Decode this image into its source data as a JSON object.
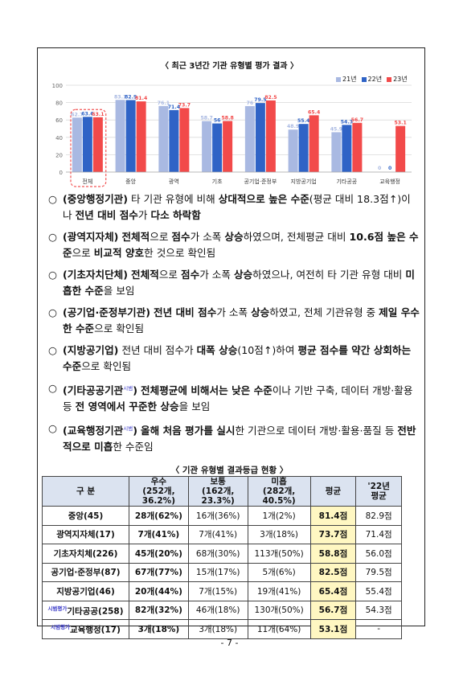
{
  "chart_data": {
    "type": "bar",
    "title": "〈 최근 3년간 기관 유형별 평가 결과 〉",
    "categories": [
      "전체",
      "중앙",
      "광역",
      "기초",
      "공기업·준정부",
      "지방공기업",
      "기타공공",
      "교육행정"
    ],
    "series": [
      {
        "name": "21년",
        "color": "#a9b9e2",
        "values": [
          62.7,
          83.1,
          76.1,
          58.7,
          76.0,
          48.9,
          45.9,
          0
        ]
      },
      {
        "name": "22년",
        "color": "#2f63c6",
        "values": [
          63.6,
          82.9,
          71.4,
          56.0,
          79.5,
          55.4,
          54.3,
          0
        ]
      },
      {
        "name": "23년",
        "color": "#f24a4a",
        "values": [
          63.1,
          81.4,
          73.7,
          58.8,
          82.5,
          65.4,
          56.7,
          53.1
        ]
      }
    ],
    "yticks": [
      0,
      20,
      40,
      60,
      80,
      100
    ],
    "ylim": [
      0,
      100
    ],
    "grid": true,
    "legend": "top-right"
  },
  "bullets": [
    {
      "mark": "○",
      "parts": [
        {
          "t": "(중앙행정기관)",
          "b": true
        },
        {
          "t": " 타 기관 유형에 비해 "
        },
        {
          "t": "상대적으로 높은 수준",
          "b": true
        },
        {
          "t": "(평균 대비 18.3점↑)이나 "
        },
        {
          "t": "전년 대비 점수",
          "b": true
        },
        {
          "t": "가 "
        },
        {
          "t": "다소 하락함",
          "b": true
        }
      ]
    },
    {
      "mark": "○",
      "parts": [
        {
          "t": "(광역지자체)",
          "b": true
        },
        {
          "t": " "
        },
        {
          "t": "전체적",
          "b": true
        },
        {
          "t": "으로 "
        },
        {
          "t": "점수",
          "b": true
        },
        {
          "t": "가 소폭 "
        },
        {
          "t": "상승",
          "b": true
        },
        {
          "t": "하였으며, 전체평균 대비 "
        },
        {
          "t": "10.6점 높은 수준",
          "b": true
        },
        {
          "t": "으로 "
        },
        {
          "t": "비교적 양호",
          "b": true
        },
        {
          "t": "한 것으로 확인됨"
        }
      ]
    },
    {
      "mark": "○",
      "parts": [
        {
          "t": "(기초자치단체)",
          "b": true
        },
        {
          "t": " "
        },
        {
          "t": "전체적",
          "b": true
        },
        {
          "t": "으로 "
        },
        {
          "t": "점수",
          "b": true
        },
        {
          "t": "가 소폭 "
        },
        {
          "t": "상승",
          "b": true
        },
        {
          "t": "하였으나, 여전히 타 기관 유형 대비 "
        },
        {
          "t": "미흡한 수준",
          "b": true
        },
        {
          "t": "을 보임"
        }
      ]
    },
    {
      "mark": "○",
      "parts": [
        {
          "t": "(공기업·준정부기관)",
          "b": true
        },
        {
          "t": " "
        },
        {
          "t": "전년 대비 점수",
          "b": true
        },
        {
          "t": "가 소폭 "
        },
        {
          "t": "상승",
          "b": true
        },
        {
          "t": "하였고, 전체 기관유형 중 "
        },
        {
          "t": "제일 우수한 수준",
          "b": true
        },
        {
          "t": "으로 확인됨"
        }
      ]
    },
    {
      "mark": "○",
      "parts": [
        {
          "t": "(지방공기업)",
          "b": true
        },
        {
          "t": " 전년 대비 점수가 "
        },
        {
          "t": "대폭 상승",
          "b": true
        },
        {
          "t": "(10점↑)하여 "
        },
        {
          "t": "평균 점수를 약간 상회하는 수준",
          "b": true
        },
        {
          "t": "으로 확인됨"
        }
      ]
    },
    {
      "mark": "○",
      "parts": [
        {
          "t": "(기타공공기관",
          "b": true
        },
        {
          "t": "시범",
          "tag": true
        },
        {
          "t": ")",
          "b": true
        },
        {
          "t": " "
        },
        {
          "t": "전체평균에 비해서는 낮은 수준",
          "b": true
        },
        {
          "t": "이나 기반 구축, 데이터 개방·활용 등 "
        },
        {
          "t": "전 영역에서 꾸준한 상승",
          "b": true
        },
        {
          "t": "을 보임"
        }
      ]
    },
    {
      "mark": "○",
      "parts": [
        {
          "t": "(교육행정기관",
          "b": true
        },
        {
          "t": "시범",
          "tag": true
        },
        {
          "t": ")",
          "b": true
        },
        {
          "t": " "
        },
        {
          "t": "올해 처음 평가를 실시",
          "b": true
        },
        {
          "t": "한 기관으로 데이터 개방·활용·품질 등 "
        },
        {
          "t": "전반적으로 미흡",
          "b": true
        },
        {
          "t": "한 수준임"
        }
      ]
    }
  ],
  "table": {
    "title": "〈 기관 유형별 결과등급 현황 〉",
    "headers": [
      {
        "l1": "구 분",
        "l2": ""
      },
      {
        "l1": "우수",
        "l2": "(252개, 36.2%)"
      },
      {
        "l1": "보통",
        "l2": "(162개, 23.3%)"
      },
      {
        "l1": "미흡",
        "l2": "(282개, 40.5%)"
      },
      {
        "l1": "평균",
        "l2": ""
      },
      {
        "l1": "'22년",
        "l2": "평균"
      }
    ],
    "rows": [
      {
        "tag": "",
        "name": "중앙(45)",
        "good": "28개(62%)",
        "normal": "16개(36%)",
        "poor": "1개(2%)",
        "avg": "81.4점",
        "prev": "82.9점"
      },
      {
        "tag": "",
        "name": "광역지자체(17)",
        "good": "7개(41%)",
        "normal": "7개(41%)",
        "poor": "3개(18%)",
        "avg": "73.7점",
        "prev": "71.4점"
      },
      {
        "tag": "",
        "name": "기초자치체(226)",
        "good": "45개(20%)",
        "normal": "68개(30%)",
        "poor": "113개(50%)",
        "avg": "58.8점",
        "prev": "56.0점"
      },
      {
        "tag": "",
        "name": "공기업·준정부(87)",
        "good": "67개(77%)",
        "normal": "15개(17%)",
        "poor": "5개(6%)",
        "avg": "82.5점",
        "prev": "79.5점"
      },
      {
        "tag": "",
        "name": "지방공기업(46)",
        "good": "20개(44%)",
        "normal": "7개(15%)",
        "poor": "19개(41%)",
        "avg": "65.4점",
        "prev": "55.4점"
      },
      {
        "tag": "시범평가",
        "name": "기타공공(258)",
        "good": "82개(32%)",
        "normal": "46개(18%)",
        "poor": "130개(50%)",
        "avg": "56.7점",
        "prev": "54.3점"
      },
      {
        "tag": "시범평가",
        "name": "교육행정(17)",
        "good": "3개(18%)",
        "normal": "3개(18%)",
        "poor": "11개(64%)",
        "avg": "53.1점",
        "prev": "-"
      }
    ]
  },
  "page_number": "- 7 -"
}
